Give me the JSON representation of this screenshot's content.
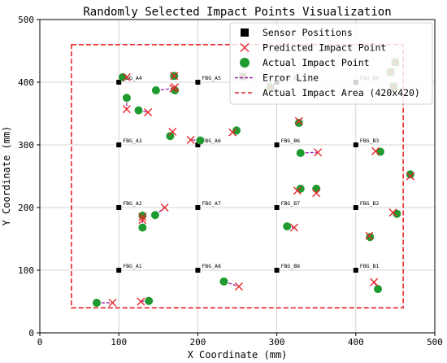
{
  "chart_data": {
    "type": "scatter",
    "title": "Randomly Selected Impact Points Visualization",
    "xlabel": "X Coordinate (mm)",
    "ylabel": "Y Coordinate (mm)",
    "xlim": [
      0,
      500
    ],
    "ylim": [
      0,
      500
    ],
    "xticks": [
      0,
      100,
      200,
      300,
      400,
      500
    ],
    "yticks": [
      0,
      100,
      200,
      300,
      400,
      500
    ],
    "grid": true,
    "legend": {
      "placement": "top-right",
      "entries": [
        {
          "label": "Sensor Positions",
          "marker": "square"
        },
        {
          "label": "Predicted Impact Point",
          "marker": "x"
        },
        {
          "label": "Actual Impact Point",
          "marker": "circle"
        },
        {
          "label": "Error Line",
          "marker": "dashed-purple"
        },
        {
          "label": "Actual Impact Area (420x420)",
          "marker": "dashed-red"
        }
      ]
    },
    "colors": {
      "sensor": "#000000",
      "predicted": "#e8262a",
      "actual": "#1f9a2f",
      "error_line": "#9b1fa8",
      "area": "#e8262a",
      "grid": "#c8c8c8"
    },
    "sensors": [
      {
        "label": "FBG_A1",
        "x": 100,
        "y": 100
      },
      {
        "label": "FBG_A2",
        "x": 100,
        "y": 200
      },
      {
        "label": "FBG_A3",
        "x": 100,
        "y": 300
      },
      {
        "label": "FBG_A4",
        "x": 100,
        "y": 400
      },
      {
        "label": "FBG_A5",
        "x": 200,
        "y": 400
      },
      {
        "label": "FBG_A6",
        "x": 200,
        "y": 300
      },
      {
        "label": "FBG_A7",
        "x": 200,
        "y": 200
      },
      {
        "label": "FBG_A8",
        "x": 200,
        "y": 100
      },
      {
        "label": "FBG_B8",
        "x": 300,
        "y": 100
      },
      {
        "label": "FBG_B7",
        "x": 300,
        "y": 200
      },
      {
        "label": "FBG_B6",
        "x": 300,
        "y": 300
      },
      {
        "label": "FBG_B5",
        "x": 300,
        "y": 400
      },
      {
        "label": "FBG_B4",
        "x": 400,
        "y": 400
      },
      {
        "label": "FBG_B3",
        "x": 400,
        "y": 300
      },
      {
        "label": "FBG_B2",
        "x": 400,
        "y": 200
      },
      {
        "label": "FBG_B1",
        "x": 400,
        "y": 100
      }
    ],
    "impact_area": {
      "x0": 40,
      "y0": 40,
      "x1": 460,
      "y1": 460
    },
    "points": [
      {
        "actual": [
          105,
          408
        ],
        "predicted": [
          110,
          408
        ]
      },
      {
        "actual": [
          170,
          410
        ],
        "predicted": [
          170,
          410
        ]
      },
      {
        "actual": [
          110,
          375
        ],
        "predicted": [
          110,
          357
        ]
      },
      {
        "actual": [
          125,
          355
        ],
        "predicted": [
          137,
          352
        ]
      },
      {
        "actual": [
          147,
          387
        ],
        "predicted": [
          169,
          390
        ]
      },
      {
        "actual": [
          171,
          387
        ],
        "predicted": [
          171,
          392
        ]
      },
      {
        "actual": [
          165,
          314
        ],
        "predicted": [
          168,
          321
        ]
      },
      {
        "actual": [
          203,
          307
        ],
        "predicted": [
          191,
          308
        ]
      },
      {
        "actual": [
          249,
          323
        ],
        "predicted": [
          244,
          320
        ]
      },
      {
        "actual": [
          328,
          335
        ],
        "predicted": [
          328,
          338
        ]
      },
      {
        "actual": [
          330,
          287
        ],
        "predicted": [
          352,
          288
        ]
      },
      {
        "actual": [
          431,
          289
        ],
        "predicted": [
          425,
          290
        ]
      },
      {
        "actual": [
          469,
          253
        ],
        "predicted": [
          469,
          250
        ]
      },
      {
        "actual": [
          130,
          187
        ],
        "predicted": [
          130,
          185
        ]
      },
      {
        "actual": [
          130,
          168
        ],
        "predicted": [
          130,
          180
        ]
      },
      {
        "actual": [
          146,
          188
        ],
        "predicted": [
          158,
          200
        ]
      },
      {
        "actual": [
          330,
          230
        ],
        "predicted": [
          326,
          227
        ]
      },
      {
        "actual": [
          350,
          230
        ],
        "predicted": [
          350,
          223
        ]
      },
      {
        "actual": [
          313,
          170
        ],
        "predicted": [
          322,
          168
        ]
      },
      {
        "actual": [
          452,
          190
        ],
        "predicted": [
          447,
          192
        ]
      },
      {
        "actual": [
          418,
          153
        ],
        "predicted": [
          417,
          155
        ]
      },
      {
        "actual": [
          72,
          48
        ],
        "predicted": [
          92,
          48
        ]
      },
      {
        "actual": [
          138,
          51
        ],
        "predicted": [
          128,
          50
        ]
      },
      {
        "actual": [
          233,
          82
        ],
        "predicted": [
          252,
          74
        ]
      },
      {
        "actual": [
          428,
          70
        ],
        "predicted": [
          423,
          81
        ]
      },
      {
        "actual": [
          292,
          392
        ],
        "predicted": [
          292,
          392
        ]
      },
      {
        "actual": [
          257,
          409
        ],
        "predicted": [
          257,
          409
        ]
      },
      {
        "actual": [
          448,
          393
        ],
        "predicted": [
          448,
          393
        ]
      },
      {
        "actual": [
          444,
          416
        ],
        "predicted": [
          444,
          416
        ]
      },
      {
        "actual": [
          450,
          432
        ],
        "predicted": [
          450,
          432
        ]
      }
    ]
  }
}
